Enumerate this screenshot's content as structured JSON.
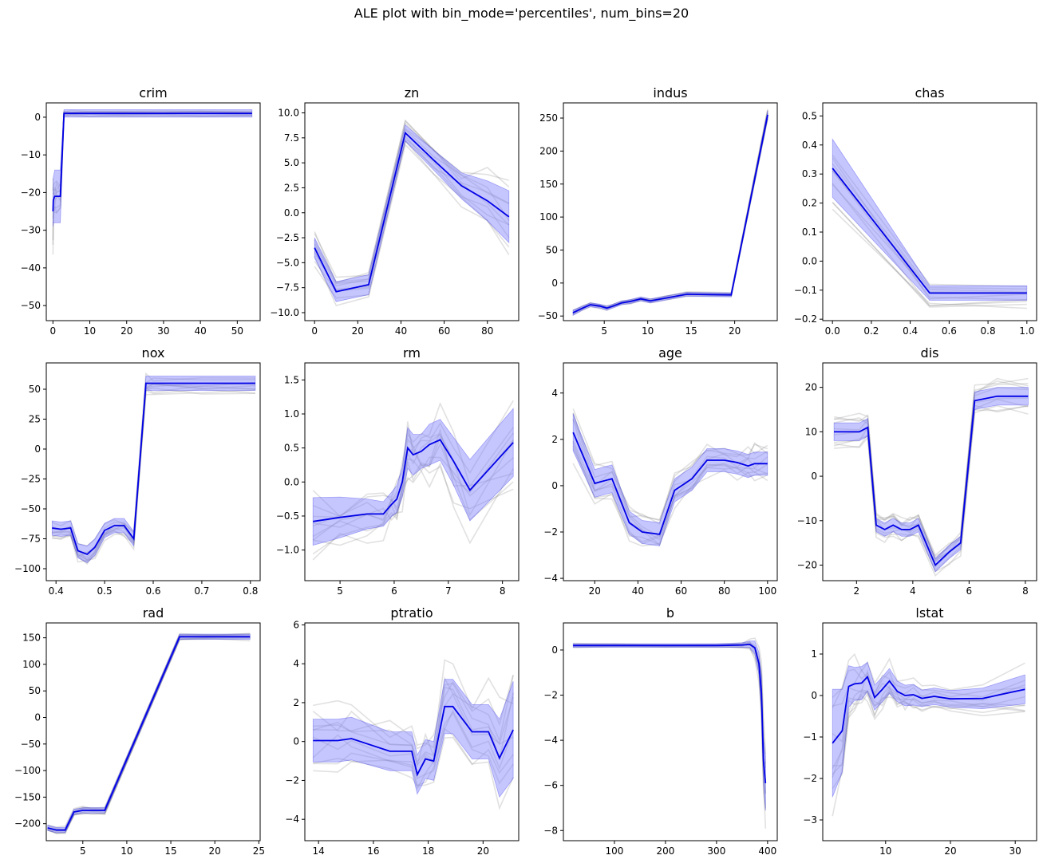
{
  "suptitle": "ALE plot with bin_mode='percentiles', num_bins=20",
  "colors": {
    "mean": "#0000e6",
    "band": "#8080ff",
    "samples": "#888888",
    "axis": "#000000"
  },
  "chart_data": [
    {
      "type": "line",
      "title": "crim",
      "xlim": [
        -1.8,
        56.2
      ],
      "ylim": [
        -54,
        3.8
      ],
      "xticks": [
        0,
        10,
        20,
        30,
        40,
        50
      ],
      "xtick_labels": [
        "0",
        "10",
        "20",
        "30",
        "40",
        "50"
      ],
      "yticks": [
        -50,
        -40,
        -30,
        -20,
        -10,
        0
      ],
      "ytick_labels": [
        "−50",
        "−40",
        "−30",
        "−20",
        "−10",
        "0"
      ],
      "x": [
        0.01,
        0.1,
        0.5,
        1.0,
        2.0,
        3.0,
        5.0,
        10,
        20,
        30,
        40,
        54
      ],
      "mean": [
        -25,
        -22,
        -21,
        -21,
        -21,
        1,
        1,
        1,
        1,
        1,
        1,
        1
      ],
      "band_half": [
        4,
        6,
        7,
        7,
        7,
        1,
        1,
        1,
        1,
        1,
        1,
        1
      ],
      "spread": [
        12,
        6,
        5,
        5,
        5,
        0.8,
        0.8,
        0.8,
        0.8,
        0.8,
        0.8,
        0.8
      ]
    },
    {
      "type": "line",
      "title": "zn",
      "xlim": [
        -4.5,
        94.5
      ],
      "ylim": [
        -10.8,
        11
      ],
      "xticks": [
        0,
        20,
        40,
        60,
        80
      ],
      "xtick_labels": [
        "0",
        "20",
        "40",
        "60",
        "80"
      ],
      "yticks": [
        -10,
        -7.5,
        -5,
        -2.5,
        0,
        2.5,
        5,
        7.5,
        10
      ],
      "ytick_labels": [
        "−10.0",
        "−7.5",
        "−5.0",
        "−2.5",
        "0.0",
        "2.5",
        "5.0",
        "7.5",
        "10.0"
      ],
      "x": [
        0,
        10,
        25,
        42,
        55,
        68,
        80,
        90
      ],
      "mean": [
        -3.5,
        -7.9,
        -7.2,
        8.0,
        5.3,
        2.7,
        1.2,
        -0.4
      ],
      "band_half": [
        1.0,
        1.0,
        1.0,
        0.8,
        1.0,
        1.3,
        2.0,
        2.6
      ],
      "spread": [
        2.2,
        1.5,
        1.3,
        1.4,
        1.8,
        2.2,
        3.5,
        4.5
      ]
    },
    {
      "type": "line",
      "title": "indus",
      "xlim": [
        0.3,
        24.9
      ],
      "ylim": [
        -57,
        273
      ],
      "xticks": [
        5,
        10,
        15,
        20
      ],
      "xtick_labels": [
        "5",
        "10",
        "15",
        "20"
      ],
      "yticks": [
        -50,
        0,
        50,
        100,
        150,
        200,
        250
      ],
      "ytick_labels": [
        "−50",
        "0",
        "50",
        "100",
        "150",
        "200",
        "250"
      ],
      "x": [
        1.4,
        2.5,
        3.4,
        4.5,
        5.3,
        6.0,
        7.0,
        8.0,
        9.2,
        10.3,
        12.0,
        14.5,
        19.6,
        23.8
      ],
      "mean": [
        -45,
        -38,
        -33,
        -35,
        -38,
        -35,
        -30,
        -28,
        -24,
        -27,
        -23,
        -17,
        -18,
        255
      ],
      "band_half": [
        4,
        3,
        3,
        3,
        3,
        3,
        3,
        3,
        3,
        3,
        3,
        3,
        3,
        6
      ],
      "spread": [
        5,
        4,
        4,
        4,
        4,
        4,
        4,
        4,
        4,
        4,
        4,
        4,
        4,
        10
      ]
    },
    {
      "type": "line",
      "title": "chas",
      "xlim": [
        -0.05,
        1.05
      ],
      "ylim": [
        -0.205,
        0.545
      ],
      "xticks": [
        0,
        0.2,
        0.4,
        0.6,
        0.8,
        1.0
      ],
      "xtick_labels": [
        "0.0",
        "0.2",
        "0.4",
        "0.6",
        "0.8",
        "1.0"
      ],
      "yticks": [
        -0.2,
        -0.1,
        0,
        0.1,
        0.2,
        0.3,
        0.4,
        0.5
      ],
      "ytick_labels": [
        "−0.2",
        "−0.1",
        "0.0",
        "0.1",
        "0.2",
        "0.3",
        "0.4",
        "0.5"
      ],
      "x": [
        0,
        0.5,
        1.0
      ],
      "mean": [
        0.32,
        -0.11,
        -0.11
      ],
      "band_half": [
        0.1,
        0.025,
        0.025
      ],
      "spread": [
        0.18,
        0.06,
        0.06
      ]
    },
    {
      "type": "line",
      "title": "nox",
      "xlim": [
        0.38,
        0.82
      ],
      "ylim": [
        -110,
        72
      ],
      "xticks": [
        0.4,
        0.5,
        0.6,
        0.7,
        0.8
      ],
      "xtick_labels": [
        "0.4",
        "0.5",
        "0.6",
        "0.7",
        "0.8"
      ],
      "yticks": [
        -100,
        -75,
        -50,
        -25,
        0,
        25,
        50
      ],
      "ytick_labels": [
        "−100",
        "−75",
        "−50",
        "−25",
        "0",
        "25",
        "50"
      ],
      "x": [
        0.392,
        0.41,
        0.43,
        0.445,
        0.464,
        0.48,
        0.5,
        0.52,
        0.54,
        0.56,
        0.585,
        0.6,
        0.7,
        0.81
      ],
      "mean": [
        -66,
        -67,
        -66,
        -85,
        -88,
        -82,
        -68,
        -64,
        -64,
        -75,
        55,
        55,
        55,
        55
      ],
      "band_half": [
        6,
        6,
        6,
        6,
        7,
        7,
        6,
        6,
        6,
        6,
        6,
        6,
        6,
        6
      ],
      "spread": [
        9,
        9,
        9,
        9,
        10,
        10,
        9,
        9,
        9,
        9,
        10,
        10,
        10,
        10
      ]
    },
    {
      "type": "line",
      "title": "rm",
      "xlim": [
        4.35,
        8.3
      ],
      "ylim": [
        -1.45,
        1.75
      ],
      "xticks": [
        5,
        6,
        7,
        8
      ],
      "xtick_labels": [
        "5",
        "6",
        "7",
        "8"
      ],
      "yticks": [
        -1,
        -0.5,
        0,
        0.5,
        1,
        1.5
      ],
      "ytick_labels": [
        "−1.0",
        "−0.5",
        "0.0",
        "0.5",
        "1.0",
        "1.5"
      ],
      "x": [
        4.5,
        5.0,
        5.5,
        5.8,
        5.95,
        6.05,
        6.15,
        6.25,
        6.35,
        6.5,
        6.65,
        6.85,
        7.1,
        7.4,
        8.2
      ],
      "mean": [
        -0.58,
        -0.52,
        -0.47,
        -0.47,
        -0.33,
        -0.25,
        0.0,
        0.5,
        0.4,
        0.45,
        0.55,
        0.62,
        0.3,
        -0.12,
        0.58
      ],
      "band_half": [
        0.35,
        0.3,
        0.22,
        0.18,
        0.18,
        0.2,
        0.22,
        0.3,
        0.3,
        0.25,
        0.3,
        0.3,
        0.35,
        0.45,
        0.5
      ],
      "spread": [
        0.7,
        0.6,
        0.5,
        0.45,
        0.45,
        0.5,
        0.55,
        0.7,
        0.7,
        0.6,
        0.7,
        0.8,
        0.8,
        0.9,
        1.0
      ]
    },
    {
      "type": "line",
      "title": "age",
      "xlim": [
        5.5,
        104.5
      ],
      "ylim": [
        -4.1,
        5.3
      ],
      "xticks": [
        20,
        40,
        60,
        80,
        100
      ],
      "xtick_labels": [
        "20",
        "40",
        "60",
        "80",
        "100"
      ],
      "yticks": [
        -4,
        -2,
        0,
        2,
        4
      ],
      "ytick_labels": [
        "−4",
        "−2",
        "0",
        "2",
        "4"
      ],
      "x": [
        10,
        20,
        28,
        36,
        42,
        50,
        57,
        65,
        72,
        80,
        86,
        91,
        94,
        100
      ],
      "mean": [
        2.3,
        0.1,
        0.3,
        -1.6,
        -2.0,
        -2.1,
        -0.2,
        0.3,
        1.1,
        1.1,
        1.0,
        0.85,
        0.95,
        0.95
      ],
      "band_half": [
        0.8,
        0.6,
        0.6,
        0.5,
        0.5,
        0.5,
        0.5,
        0.5,
        0.5,
        0.5,
        0.5,
        0.5,
        0.5,
        0.5
      ],
      "spread": [
        1.6,
        1.0,
        1.0,
        0.8,
        0.8,
        0.8,
        0.8,
        0.8,
        0.8,
        0.8,
        0.9,
        0.9,
        1.0,
        1.0
      ]
    },
    {
      "type": "line",
      "title": "dis",
      "xlim": [
        0.8,
        8.4
      ],
      "ylim": [
        -23.5,
        25.5
      ],
      "xticks": [
        2,
        4,
        6,
        8
      ],
      "xtick_labels": [
        "2",
        "4",
        "6",
        "8"
      ],
      "yticks": [
        -20,
        -10,
        0,
        10,
        20
      ],
      "ytick_labels": [
        "−20",
        "−10",
        "0",
        "10",
        "20"
      ],
      "x": [
        1.2,
        2.1,
        2.4,
        2.7,
        3.0,
        3.3,
        3.6,
        3.9,
        4.2,
        4.8,
        5.3,
        5.7,
        6.2,
        7.0,
        8.1
      ],
      "mean": [
        10,
        10,
        11,
        -11,
        -12,
        -11,
        -12,
        -12,
        -11,
        -20,
        -17,
        -15,
        17,
        18,
        18
      ],
      "band_half": [
        2,
        2,
        2,
        1.5,
        1.5,
        1.5,
        1.5,
        1.5,
        1.5,
        1.5,
        1.5,
        1.5,
        2,
        2,
        2
      ],
      "spread": [
        4,
        4,
        4,
        3,
        3,
        3,
        3,
        3,
        3,
        3,
        3,
        3,
        4,
        4,
        5
      ]
    },
    {
      "type": "line",
      "title": "rad",
      "xlim": [
        0.85,
        25.15
      ],
      "ylim": [
        -232,
        178
      ],
      "xticks": [
        5,
        10,
        15,
        20,
        25
      ],
      "xtick_labels": [
        "5",
        "10",
        "15",
        "20",
        "25"
      ],
      "yticks": [
        -200,
        -150,
        -100,
        -50,
        0,
        50,
        100,
        150
      ],
      "ytick_labels": [
        "−200",
        "−150",
        "−100",
        "−50",
        "0",
        "50",
        "100",
        "150"
      ],
      "x": [
        1,
        2,
        3,
        4,
        5,
        6,
        7.5,
        16,
        20,
        24
      ],
      "mean": [
        -208,
        -212,
        -212,
        -178,
        -175,
        -175,
        -175,
        152,
        152,
        152
      ],
      "band_half": [
        5,
        5,
        5,
        5,
        5,
        5,
        5,
        5,
        5,
        5
      ],
      "spread": [
        8,
        8,
        8,
        8,
        8,
        8,
        8,
        8,
        8,
        8
      ]
    },
    {
      "type": "line",
      "title": "ptratio",
      "xlim": [
        13.5,
        21.3
      ],
      "ylim": [
        -5.1,
        6.1
      ],
      "xticks": [
        14,
        16,
        18,
        20
      ],
      "xtick_labels": [
        "14",
        "16",
        "18",
        "20"
      ],
      "yticks": [
        -4,
        -2,
        0,
        2,
        4,
        6
      ],
      "ytick_labels": [
        "−4",
        "−2",
        "0",
        "2",
        "4",
        "6"
      ],
      "x": [
        13.8,
        14.7,
        15.2,
        16.6,
        17.4,
        17.6,
        17.9,
        18.2,
        18.6,
        18.9,
        19.6,
        20.2,
        20.6,
        21.1
      ],
      "mean": [
        0.05,
        0.05,
        0.15,
        -0.5,
        -0.5,
        -1.7,
        -0.9,
        -1.0,
        1.8,
        1.8,
        0.5,
        0.5,
        -0.85,
        0.6
      ],
      "band_half": [
        1.1,
        1.1,
        1.1,
        1.0,
        1.0,
        1.0,
        1.0,
        1.0,
        1.4,
        1.4,
        1.4,
        1.4,
        2.0,
        2.5
      ],
      "spread": [
        2.0,
        2.0,
        2.0,
        1.8,
        1.8,
        1.6,
        1.6,
        1.6,
        2.6,
        2.6,
        2.6,
        2.6,
        3.2,
        3.5
      ]
    },
    {
      "type": "line",
      "title": "b",
      "xlim": [
        0,
        419
      ],
      "ylim": [
        -8.45,
        1.2
      ],
      "xticks": [
        100,
        200,
        300,
        400
      ],
      "xtick_labels": [
        "100",
        "200",
        "300",
        "400"
      ],
      "yticks": [
        -8,
        -6,
        -4,
        -2,
        0
      ],
      "ytick_labels": [
        "−8",
        "−6",
        "−4",
        "−2",
        "0"
      ],
      "x": [
        19,
        100,
        200,
        300,
        350,
        365,
        375,
        383,
        388,
        392,
        396
      ],
      "mean": [
        0.2,
        0.2,
        0.2,
        0.2,
        0.22,
        0.25,
        0.1,
        -0.6,
        -1.9,
        -4.9,
        -5.9
      ],
      "band_half": [
        0.08,
        0.08,
        0.08,
        0.08,
        0.1,
        0.15,
        0.3,
        0.5,
        0.8,
        1.0,
        1.2
      ],
      "spread": [
        0.1,
        0.1,
        0.1,
        0.1,
        0.15,
        0.3,
        0.6,
        1.0,
        1.5,
        2.0,
        2.2
      ]
    },
    {
      "type": "line",
      "title": "lstat",
      "xlim": [
        0.3,
        33.3
      ],
      "ylim": [
        -3.5,
        1.75
      ],
      "xticks": [
        10,
        20,
        30
      ],
      "xtick_labels": [
        "10",
        "20",
        "30"
      ],
      "yticks": [
        -3,
        -2,
        -1,
        0,
        1
      ],
      "ytick_labels": [
        "−3",
        "−2",
        "−1",
        "0",
        "1"
      ],
      "x": [
        1.8,
        3.3,
        4.3,
        5.2,
        6.3,
        7.2,
        8.3,
        9.5,
        10.6,
        11.8,
        13.0,
        14.3,
        15.6,
        17.5,
        20,
        25,
        31.5
      ],
      "mean": [
        -1.15,
        -0.85,
        0.22,
        0.28,
        0.3,
        0.45,
        -0.05,
        0.15,
        0.35,
        0.1,
        0.0,
        0.02,
        -0.07,
        -0.02,
        -0.08,
        -0.07,
        0.15
      ],
      "band_half": [
        1.3,
        1.0,
        0.5,
        0.4,
        0.4,
        0.35,
        0.3,
        0.3,
        0.3,
        0.25,
        0.25,
        0.25,
        0.2,
        0.2,
        0.2,
        0.25,
        0.35
      ],
      "spread": [
        2.0,
        1.5,
        0.9,
        0.7,
        0.7,
        0.6,
        0.5,
        0.5,
        0.5,
        0.4,
        0.4,
        0.4,
        0.3,
        0.3,
        0.3,
        0.4,
        0.6
      ]
    }
  ]
}
